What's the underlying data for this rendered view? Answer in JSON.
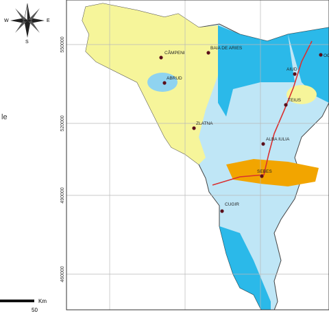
{
  "compass": {
    "west": "W",
    "east": "E",
    "south": "S"
  },
  "legend_fragment": "le",
  "scale": {
    "unit": "Km",
    "distance": "50"
  },
  "coordinates": [
    "550000",
    "520000",
    "490000",
    "460000"
  ],
  "towns": [
    "CÂMPENI",
    "BAIA DE ARIES",
    "ABRUD",
    "ZLATNA",
    "AIUD",
    "TEIUS",
    "ALBA IULIA",
    "SEBES",
    "CUGIR",
    "OC"
  ]
}
